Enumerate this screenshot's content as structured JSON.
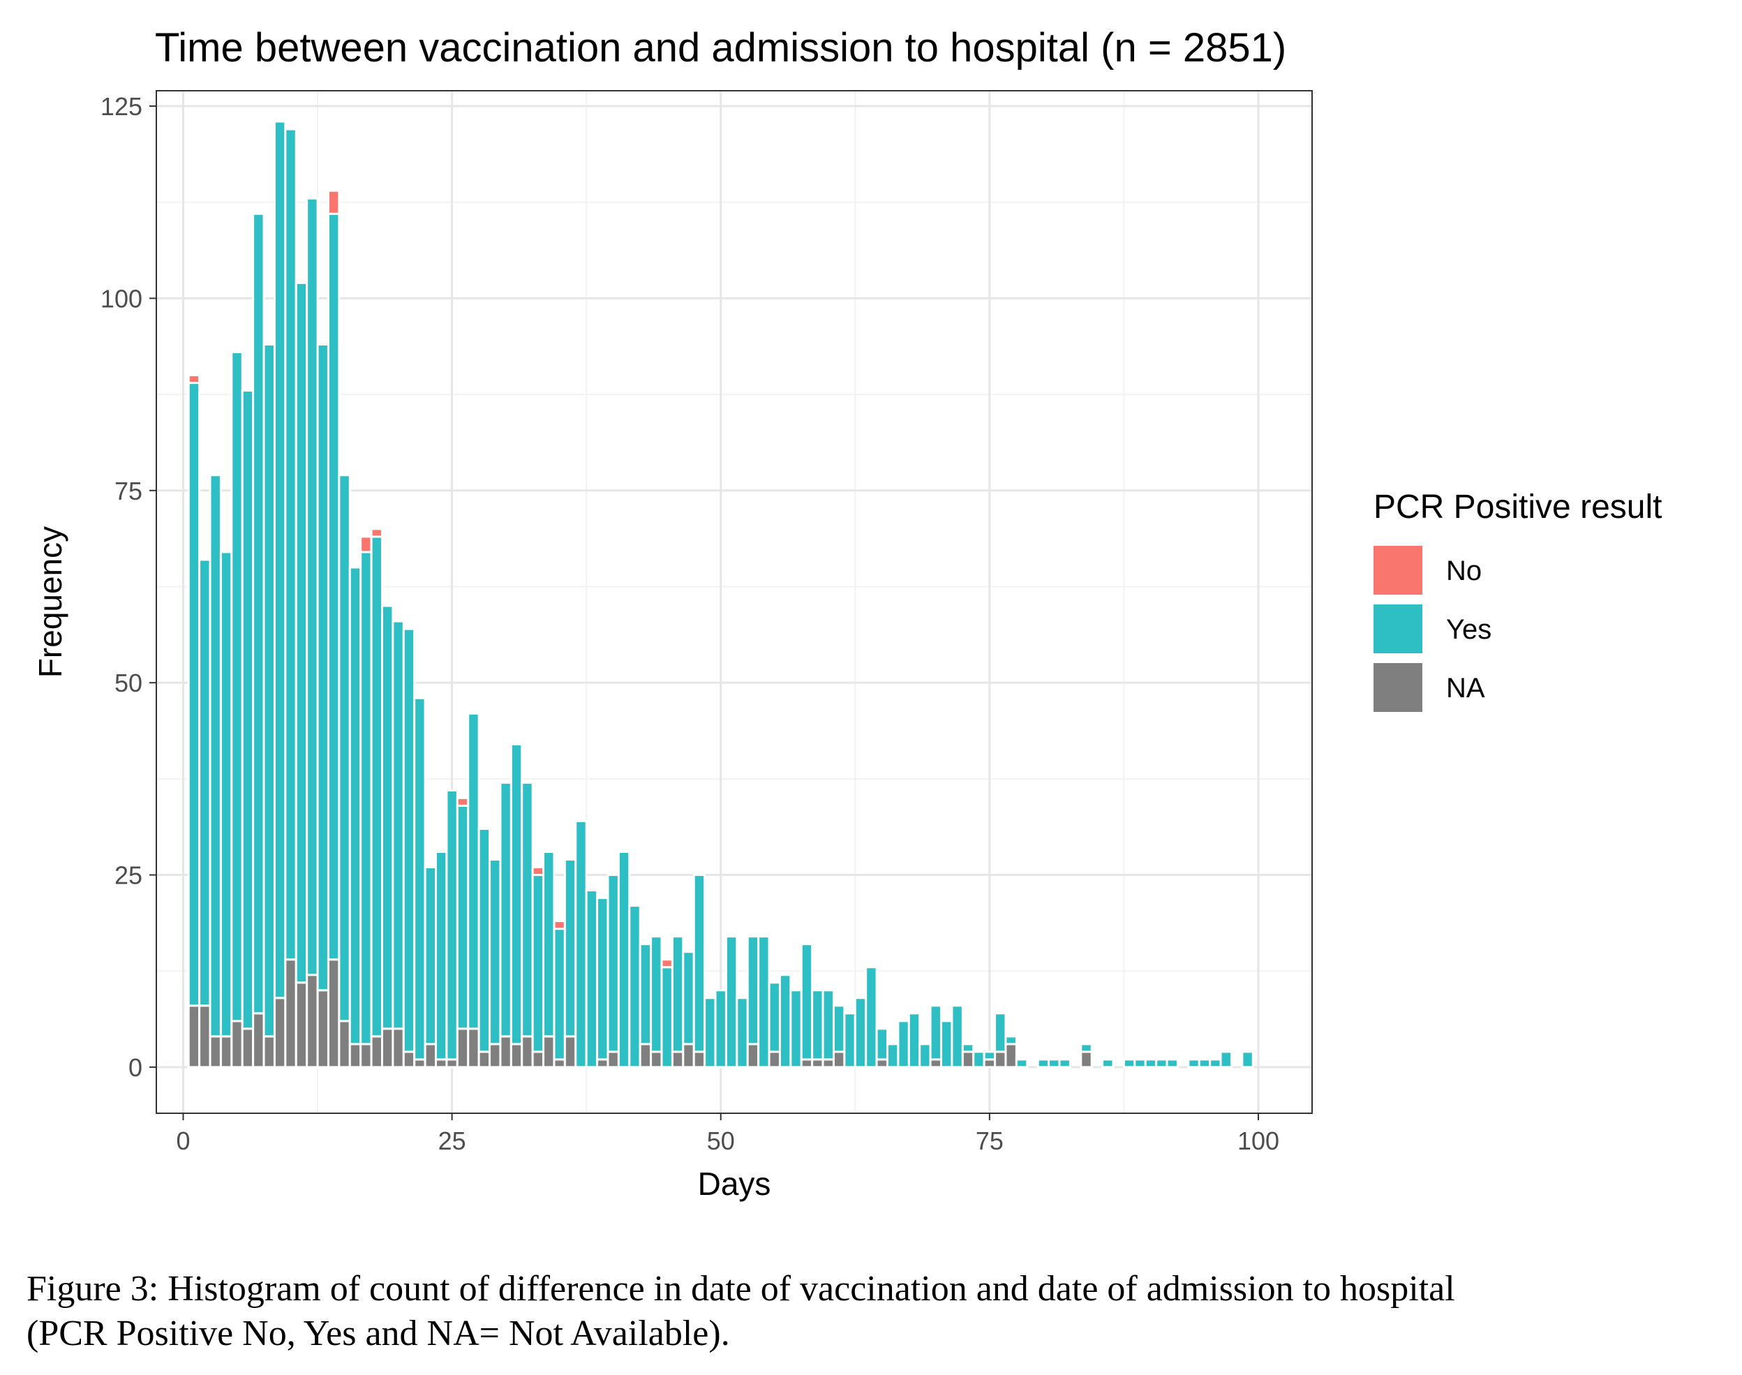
{
  "chart_data": {
    "type": "bar",
    "stacked": true,
    "title": "Time between vaccination and admission to hospital (n = 2851)",
    "xlabel": "Days",
    "ylabel": "Frequency",
    "xlim": [
      -2.5,
      105
    ],
    "ylim": [
      -6,
      127
    ],
    "x_ticks": [
      0,
      25,
      50,
      75,
      100
    ],
    "y_ticks": [
      0,
      25,
      50,
      75,
      100,
      125
    ],
    "grid": true,
    "legend": {
      "title": "PCR Positive result",
      "position": "right",
      "entries": [
        {
          "label": "No",
          "color": "#F8766D"
        },
        {
          "label": "Yes",
          "color": "#2EBFC4"
        },
        {
          "label": "NA",
          "color": "#7F7F7F"
        }
      ]
    },
    "x": [
      1,
      2,
      3,
      4,
      5,
      6,
      7,
      8,
      9,
      10,
      11,
      12,
      13,
      14,
      15,
      16,
      17,
      18,
      19,
      20,
      21,
      22,
      23,
      24,
      25,
      26,
      27,
      28,
      29,
      30,
      31,
      32,
      33,
      34,
      35,
      36,
      37,
      38,
      39,
      40,
      41,
      42,
      43,
      44,
      45,
      46,
      47,
      48,
      49,
      50,
      51,
      52,
      53,
      54,
      55,
      56,
      57,
      58,
      59,
      60,
      61,
      62,
      63,
      64,
      65,
      66,
      67,
      68,
      69,
      70,
      71,
      72,
      73,
      74,
      75,
      76,
      77,
      78,
      79,
      80,
      81,
      82,
      83,
      84,
      85,
      86,
      87,
      88,
      89,
      90,
      91,
      92,
      93,
      94,
      95,
      96,
      97,
      98,
      99
    ],
    "series": [
      {
        "name": "NA",
        "color": "#7F7F7F",
        "values": [
          8,
          8,
          4,
          4,
          6,
          5,
          7,
          4,
          9,
          14,
          11,
          12,
          10,
          14,
          6,
          3,
          3,
          4,
          5,
          5,
          2,
          1,
          3,
          1,
          1,
          5,
          5,
          2,
          3,
          4,
          3,
          4,
          2,
          4,
          1,
          4,
          0,
          0,
          1,
          2,
          0,
          0,
          3,
          2,
          0,
          2,
          3,
          2,
          0,
          0,
          0,
          0,
          3,
          0,
          2,
          0,
          0,
          1,
          1,
          1,
          2,
          0,
          0,
          0,
          1,
          0,
          0,
          0,
          0,
          1,
          0,
          0,
          2,
          0,
          1,
          2,
          3,
          0,
          0,
          0,
          0,
          0,
          0,
          2,
          0,
          0,
          0,
          0,
          0,
          0,
          0,
          0,
          0,
          0,
          0,
          0,
          0,
          0,
          0
        ]
      },
      {
        "name": "Yes",
        "color": "#2EBFC4",
        "values": [
          81,
          58,
          73,
          63,
          87,
          83,
          104,
          90,
          114,
          108,
          91,
          101,
          84,
          97,
          71,
          62,
          64,
          65,
          55,
          53,
          55,
          47,
          23,
          27,
          35,
          29,
          41,
          29,
          24,
          33,
          39,
          33,
          23,
          24,
          17,
          23,
          32,
          23,
          21,
          23,
          28,
          21,
          13,
          15,
          13,
          15,
          12,
          23,
          9,
          10,
          17,
          9,
          14,
          17,
          9,
          12,
          10,
          15,
          9,
          9,
          6,
          7,
          9,
          13,
          4,
          3,
          6,
          7,
          3,
          7,
          6,
          8,
          1,
          2,
          1,
          5,
          1,
          1,
          0,
          1,
          1,
          1,
          0,
          1,
          0,
          1,
          0,
          1,
          1,
          1,
          1,
          1,
          0,
          1,
          1,
          1,
          2,
          0,
          2
        ]
      },
      {
        "name": "No",
        "color": "#F8766D",
        "values": [
          1,
          0,
          0,
          0,
          0,
          0,
          0,
          0,
          0,
          0,
          0,
          0,
          0,
          3,
          0,
          0,
          2,
          1,
          0,
          0,
          0,
          0,
          0,
          0,
          0,
          1,
          0,
          0,
          0,
          0,
          0,
          0,
          1,
          0,
          1,
          0,
          0,
          0,
          0,
          0,
          0,
          0,
          0,
          0,
          1,
          0,
          0,
          0,
          0,
          0,
          0,
          0,
          0,
          0,
          0,
          0,
          0,
          0,
          0,
          0,
          0,
          0,
          0,
          0,
          0,
          0,
          0,
          0,
          0,
          0,
          0,
          0,
          0,
          0,
          0,
          0,
          0,
          0,
          0,
          0,
          0,
          0,
          0,
          0,
          0,
          0,
          0,
          0,
          0,
          0,
          0,
          0,
          0,
          0,
          0,
          0,
          0,
          0,
          0
        ]
      }
    ]
  },
  "caption": {
    "line1": "Figure 3: Histogram of count of difference in date of vaccination and date of admission to hospital",
    "line2": "(PCR Positive No, Yes and NA= Not Available)."
  }
}
